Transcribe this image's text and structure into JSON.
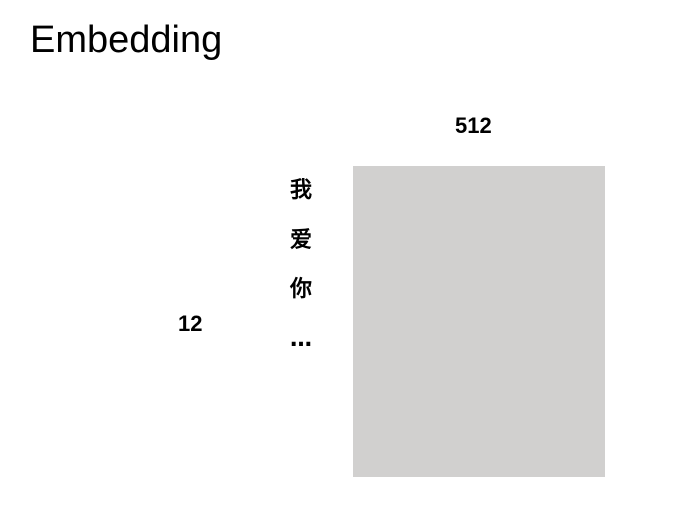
{
  "title": "Embedding",
  "matrix": {
    "width_label": "512",
    "height_label": "12",
    "fill_color": "#d1d0cf"
  },
  "tokens": [
    "我",
    "爱",
    "你",
    "…"
  ]
}
